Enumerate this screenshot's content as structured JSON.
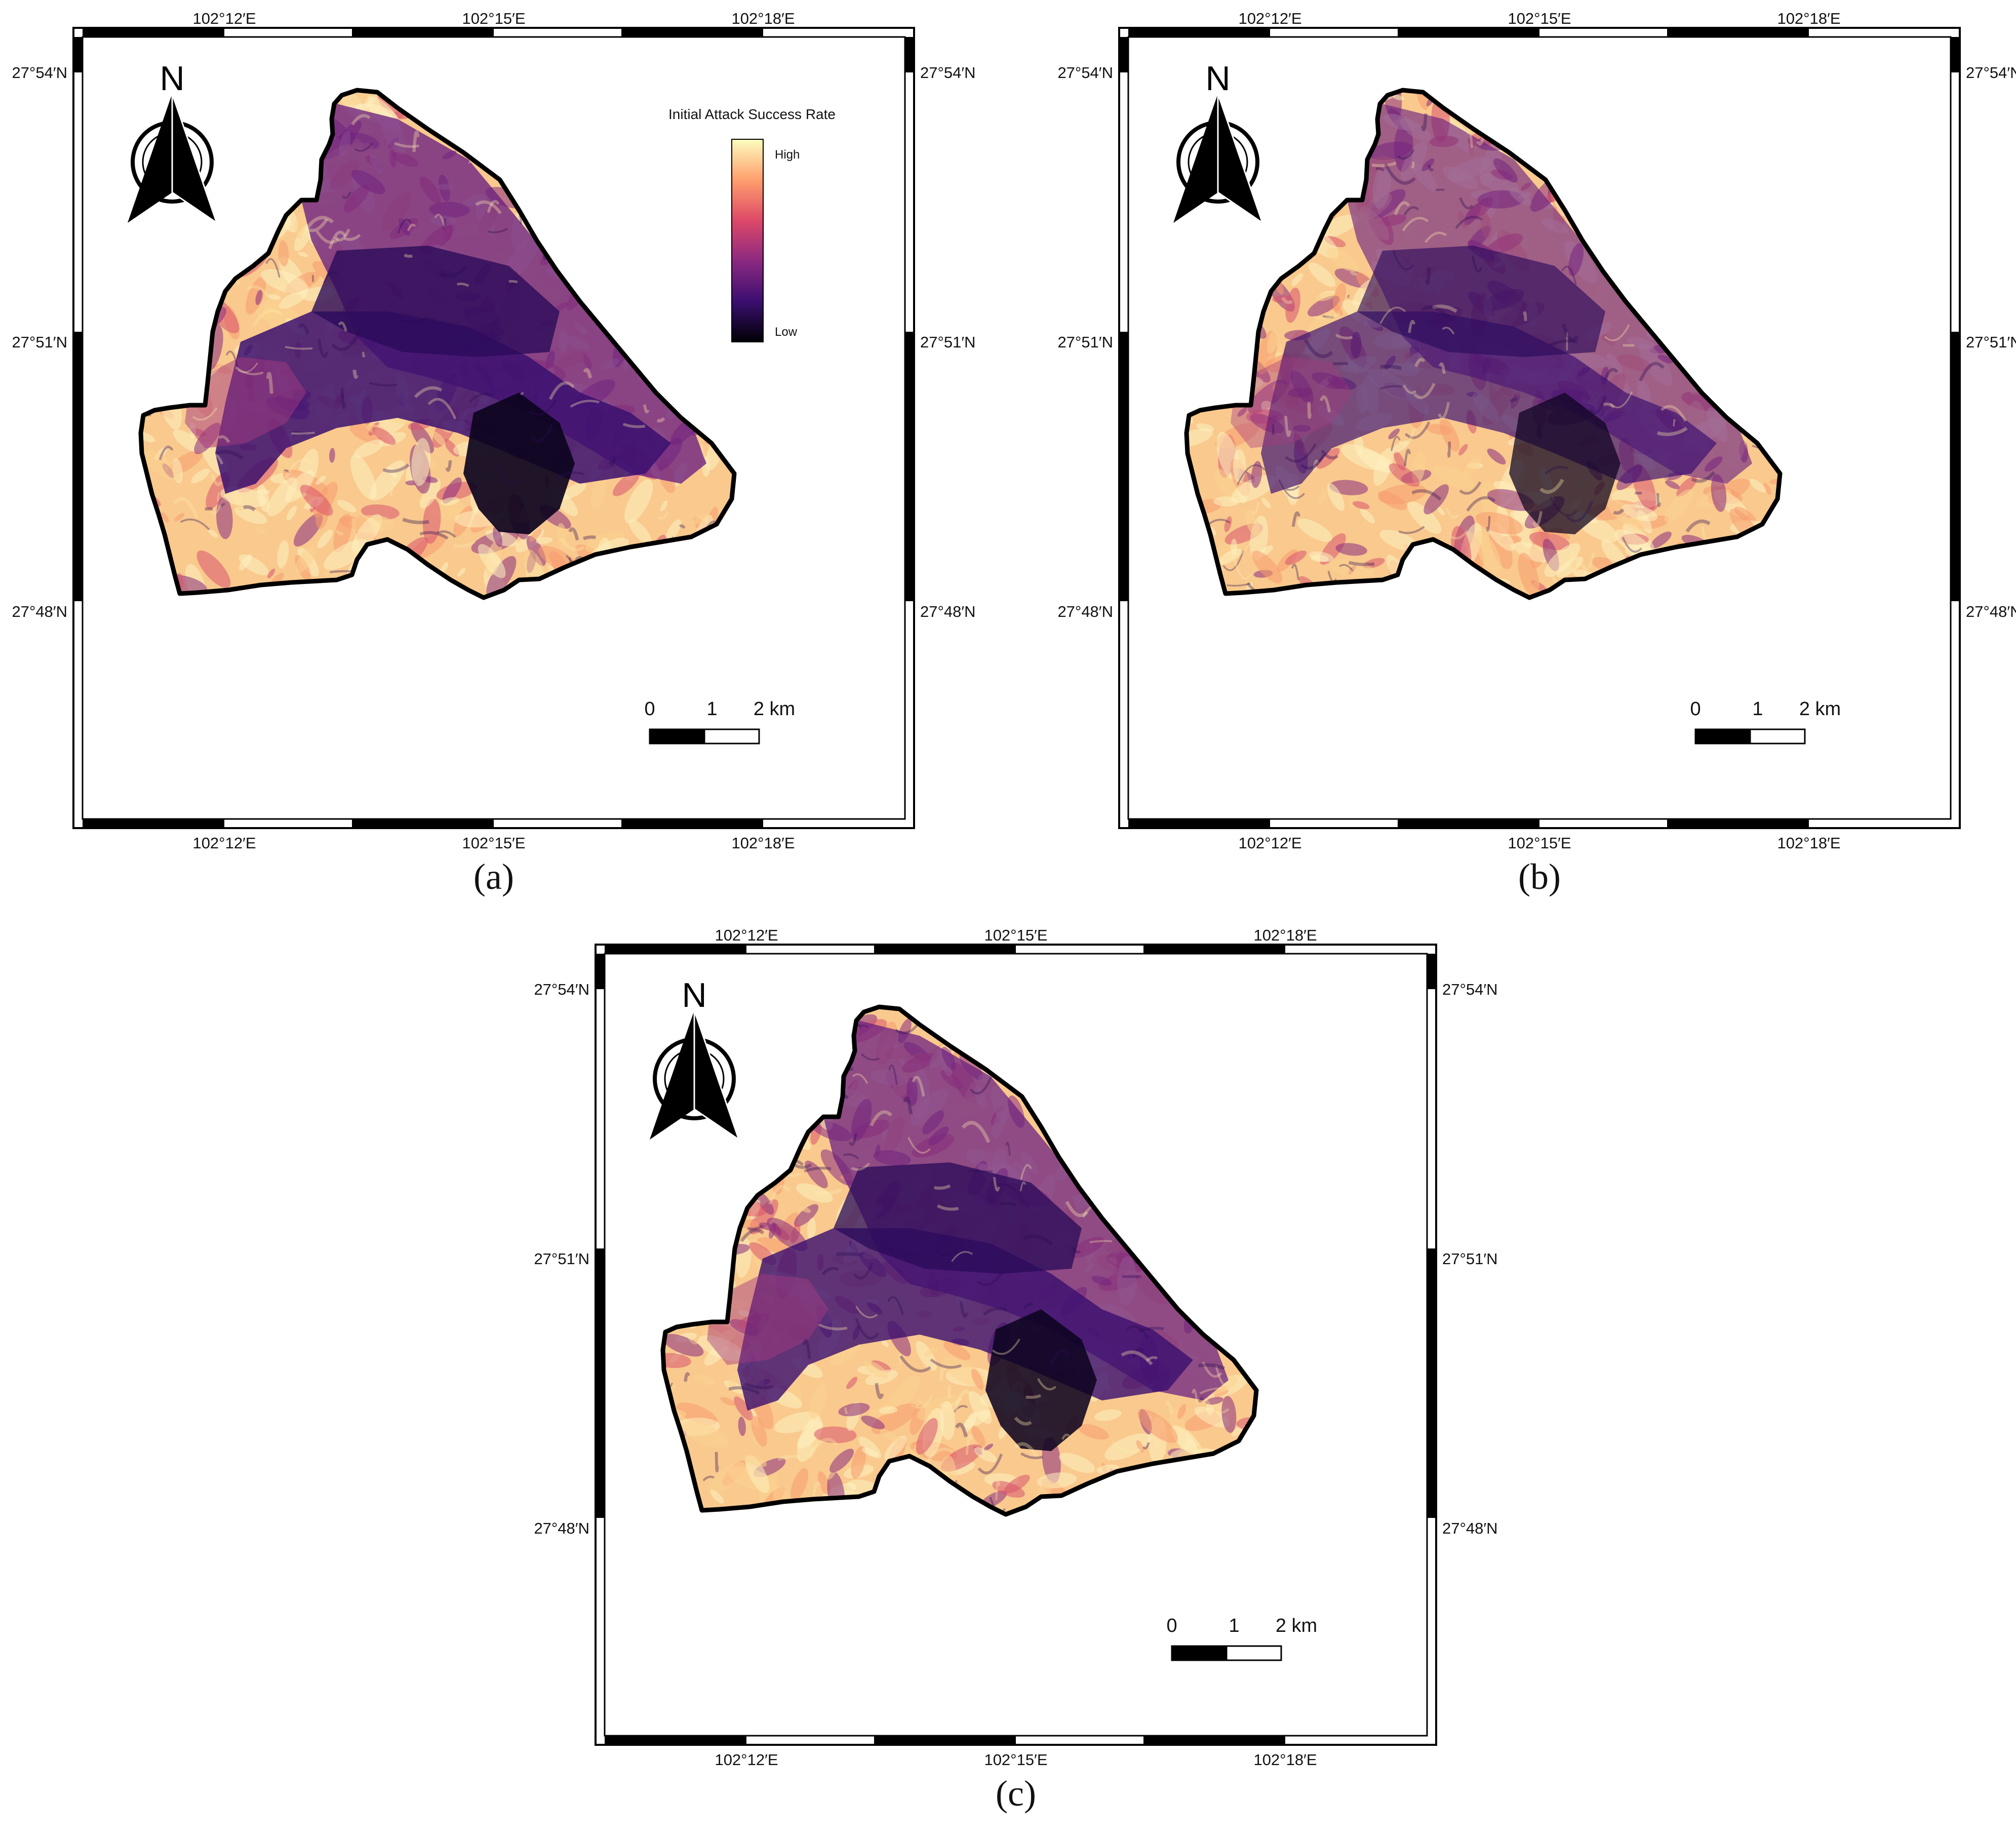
{
  "figure": {
    "panels": [
      {
        "id": "a",
        "caption": "(a)",
        "lon_labels": [
          "102°12′E",
          "102°15′E",
          "102°18′E"
        ],
        "lat_labels": [
          "27°54′N",
          "27°51′N",
          "27°48′N"
        ],
        "north_label": "N",
        "scale_labels": [
          "0",
          "1",
          "2 km"
        ],
        "legend": {
          "title": "Initial Attack Success Rate",
          "high": "High",
          "low": "Low"
        },
        "dark_level": 1.0,
        "seed": 11
      },
      {
        "id": "b",
        "caption": "(b)",
        "lon_labels": [
          "102°12′E",
          "102°15′E",
          "102°18′E"
        ],
        "lat_labels": [
          "27°54′N",
          "27°51′N",
          "27°48′N"
        ],
        "north_label": "N",
        "scale_labels": [
          "0",
          "1",
          "2 km"
        ],
        "legend": null,
        "dark_level": 0.8,
        "seed": 29
      },
      {
        "id": "c",
        "caption": "(c)",
        "lon_labels": [
          "102°12′E",
          "102°15′E",
          "102°18′E"
        ],
        "lat_labels": [
          "27°54′N",
          "27°51′N",
          "27°48′N"
        ],
        "north_label": "N",
        "scale_labels": [
          "0",
          "1",
          "2 km"
        ],
        "legend": null,
        "dark_level": 0.95,
        "seed": 47
      }
    ],
    "colormap": [
      "#000004",
      "#3b0f70",
      "#8c2981",
      "#de4968",
      "#fe9f6d",
      "#fcfdbf"
    ]
  }
}
